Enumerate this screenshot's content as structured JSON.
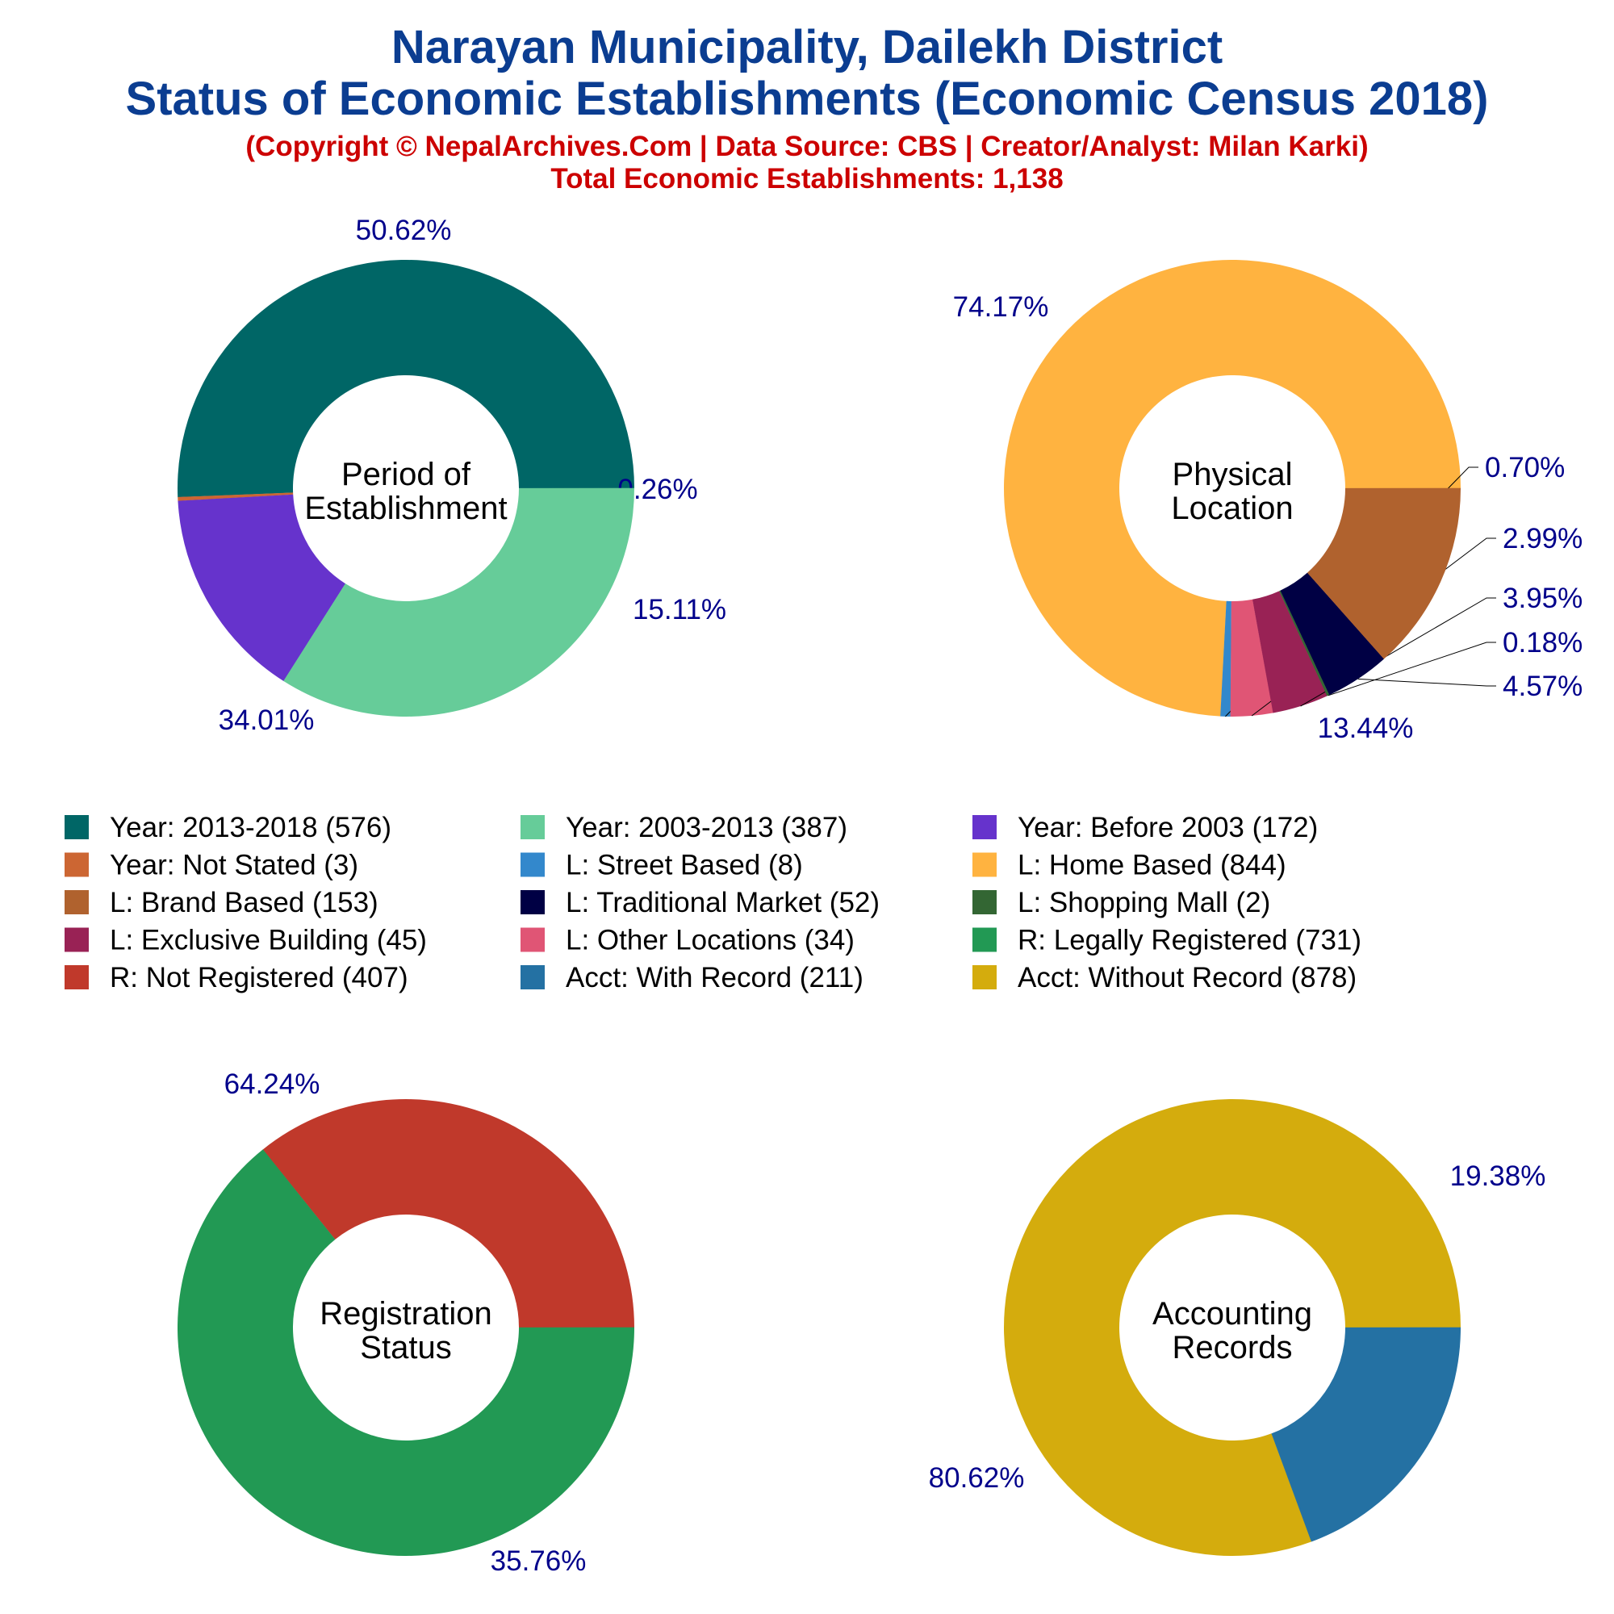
{
  "header": {
    "title_line1": "Narayan Municipality, Dailekh District",
    "title_line2": "Status of Economic Establishments (Economic Census 2018)",
    "credit": "(Copyright © NepalArchives.Com | Data Source: CBS | Creator/Analyst: Milan Karki)",
    "total": "Total Economic Establishments: 1,138"
  },
  "chart_data": [
    {
      "type": "pie",
      "subtype": "donut",
      "center_label": [
        "Period of",
        "Establishment"
      ],
      "categories": [
        "Year: 2013-2018",
        "Year: Not Stated",
        "Year: Before 2003",
        "Year: 2003-2013"
      ],
      "values": [
        576,
        3,
        172,
        387
      ],
      "percent_labels": [
        "50.62%",
        "0.26%",
        "15.11%",
        "34.01%"
      ],
      "colors": [
        "#006666",
        "#cc6633",
        "#6633cc",
        "#66cc99"
      ]
    },
    {
      "type": "pie",
      "subtype": "donut",
      "center_label": [
        "Physical",
        "Location"
      ],
      "categories": [
        "L: Home Based",
        "L: Street Based",
        "L: Other Locations",
        "L: Exclusive Building",
        "L: Shopping Mall",
        "L: Traditional Market",
        "L: Brand Based"
      ],
      "values": [
        844,
        8,
        34,
        45,
        2,
        52,
        153
      ],
      "percent_labels": [
        "74.17%",
        "0.70%",
        "2.99%",
        "3.95%",
        "0.18%",
        "4.57%",
        "13.44%"
      ],
      "colors": [
        "#ffb340",
        "#3388cc",
        "#e05575",
        "#992255",
        "#336633",
        "#000044",
        "#b0622e"
      ]
    },
    {
      "type": "pie",
      "subtype": "donut",
      "center_label": [
        "Registration",
        "Status"
      ],
      "categories": [
        "R: Not Registered",
        "R: Legally Registered"
      ],
      "values": [
        407,
        731
      ],
      "percent_labels": [
        "35.76%",
        "64.24%"
      ],
      "colors": [
        "#c0392b",
        "#229954"
      ]
    },
    {
      "type": "pie",
      "subtype": "donut",
      "center_label": [
        "Accounting",
        "Records"
      ],
      "categories": [
        "Acct: Without Record",
        "Acct: With Record"
      ],
      "values": [
        878,
        211
      ],
      "percent_labels": [
        "80.62%",
        "19.38%"
      ],
      "colors": [
        "#d4ac0d",
        "#2471a3"
      ]
    }
  ],
  "legend": [
    {
      "label": "Year: 2013-2018 (576)",
      "color": "#006666"
    },
    {
      "label": "Year: 2003-2013 (387)",
      "color": "#66cc99"
    },
    {
      "label": "Year: Before 2003 (172)",
      "color": "#6633cc"
    },
    {
      "label": "Year: Not Stated (3)",
      "color": "#cc6633"
    },
    {
      "label": "L: Street Based (8)",
      "color": "#3388cc"
    },
    {
      "label": "L: Home Based (844)",
      "color": "#ffb340"
    },
    {
      "label": "L: Brand Based (153)",
      "color": "#b0622e"
    },
    {
      "label": "L: Traditional Market (52)",
      "color": "#000044"
    },
    {
      "label": "L: Shopping Mall (2)",
      "color": "#336633"
    },
    {
      "label": "L: Exclusive Building (45)",
      "color": "#992255"
    },
    {
      "label": "L: Other Locations (34)",
      "color": "#e05575"
    },
    {
      "label": "R: Legally Registered (731)",
      "color": "#229954"
    },
    {
      "label": "R: Not Registered (407)",
      "color": "#c0392b"
    },
    {
      "label": "Acct: With Record (211)",
      "color": "#2471a3"
    },
    {
      "label": "Acct: Without Record (878)",
      "color": "#d4ac0d"
    }
  ]
}
